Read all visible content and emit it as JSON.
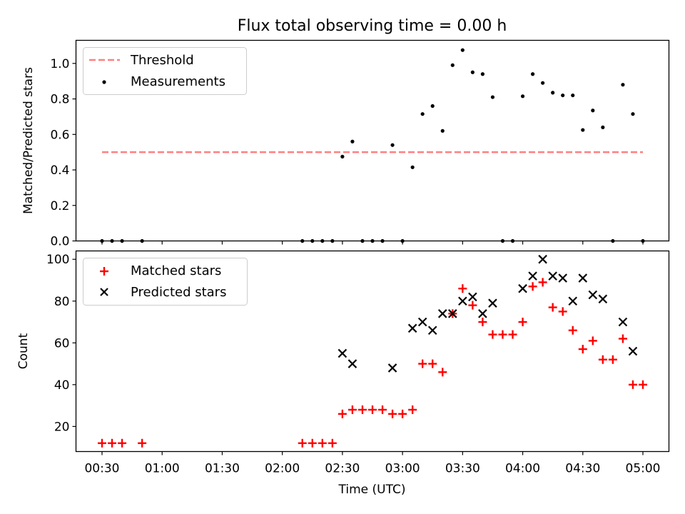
{
  "chart_data": [
    {
      "type": "scatter",
      "title": "Flux total observing time = 0.00 h",
      "ylabel": "Matched/Predicted stars",
      "xlabel": "",
      "ylim": [
        0,
        1.13
      ],
      "xlim": [
        "00:17",
        "05:13"
      ],
      "yticks": [
        0.0,
        0.2,
        0.4,
        0.6,
        0.8,
        1.0
      ],
      "ytick_labels": [
        "0.0",
        "0.2",
        "0.4",
        "0.6",
        "0.8",
        "1.0"
      ],
      "legend_position": "top-left",
      "series": [
        {
          "name": "Threshold",
          "kind": "dashed-line",
          "color": "#ff7f7f",
          "x": [
            "00:30",
            "05:00"
          ],
          "y": [
            0.5,
            0.5
          ]
        },
        {
          "name": "Measurements",
          "kind": "dot",
          "color": "#000000",
          "points": [
            [
              "00:30",
              0.0
            ],
            [
              "00:35",
              0.0
            ],
            [
              "00:40",
              0.0
            ],
            [
              "00:50",
              0.0
            ],
            [
              "02:10",
              0.0
            ],
            [
              "02:15",
              0.0
            ],
            [
              "02:20",
              0.0
            ],
            [
              "02:25",
              0.0
            ],
            [
              "02:30",
              0.475
            ],
            [
              "02:35",
              0.56
            ],
            [
              "02:40",
              0.0
            ],
            [
              "02:45",
              0.0
            ],
            [
              "02:50",
              0.0
            ],
            [
              "02:55",
              0.54
            ],
            [
              "03:00",
              0.0
            ],
            [
              "03:05",
              0.415
            ],
            [
              "03:10",
              0.715
            ],
            [
              "03:15",
              0.76
            ],
            [
              "03:20",
              0.62
            ],
            [
              "03:25",
              0.99
            ],
            [
              "03:30",
              1.075
            ],
            [
              "03:35",
              0.95
            ],
            [
              "03:40",
              0.94
            ],
            [
              "03:45",
              0.81
            ],
            [
              "03:50",
              0.0
            ],
            [
              "03:55",
              0.0
            ],
            [
              "04:00",
              0.815
            ],
            [
              "04:05",
              0.94
            ],
            [
              "04:10",
              0.89
            ],
            [
              "04:15",
              0.835
            ],
            [
              "04:20",
              0.82
            ],
            [
              "04:25",
              0.82
            ],
            [
              "04:30",
              0.625
            ],
            [
              "04:35",
              0.735
            ],
            [
              "04:40",
              0.64
            ],
            [
              "04:45",
              0.0
            ],
            [
              "04:50",
              0.88
            ],
            [
              "04:55",
              0.715
            ],
            [
              "05:00",
              0.0
            ]
          ]
        }
      ]
    },
    {
      "type": "scatter",
      "title": "",
      "ylabel": "Count",
      "xlabel": "Time (UTC)",
      "ylim": [
        8,
        104
      ],
      "xlim": [
        "00:17",
        "05:13"
      ],
      "yticks": [
        20,
        40,
        60,
        80,
        100
      ],
      "ytick_labels": [
        "20",
        "40",
        "60",
        "80",
        "100"
      ],
      "xticks": [
        "00:30",
        "01:00",
        "01:30",
        "02:00",
        "02:30",
        "03:00",
        "03:30",
        "04:00",
        "04:30",
        "05:00"
      ],
      "xtick_labels": [
        "00:30",
        "01:00",
        "01:30",
        "02:00",
        "02:30",
        "03:00",
        "03:30",
        "04:00",
        "04:30",
        "05:00"
      ],
      "legend_position": "top-left",
      "series": [
        {
          "name": "Matched stars",
          "kind": "plus",
          "color": "#ff0000",
          "points": [
            [
              "00:30",
              12
            ],
            [
              "00:35",
              12
            ],
            [
              "00:40",
              12
            ],
            [
              "00:50",
              12
            ],
            [
              "02:10",
              12
            ],
            [
              "02:15",
              12
            ],
            [
              "02:20",
              12
            ],
            [
              "02:25",
              12
            ],
            [
              "02:30",
              26
            ],
            [
              "02:35",
              28
            ],
            [
              "02:40",
              28
            ],
            [
              "02:45",
              28
            ],
            [
              "02:50",
              28
            ],
            [
              "02:55",
              26
            ],
            [
              "03:00",
              26
            ],
            [
              "03:05",
              28
            ],
            [
              "03:10",
              50
            ],
            [
              "03:15",
              50
            ],
            [
              "03:20",
              46
            ],
            [
              "03:25",
              74
            ],
            [
              "03:30",
              86
            ],
            [
              "03:35",
              78
            ],
            [
              "03:40",
              70
            ],
            [
              "03:45",
              64
            ],
            [
              "03:50",
              64
            ],
            [
              "03:55",
              64
            ],
            [
              "04:00",
              70
            ],
            [
              "04:05",
              87
            ],
            [
              "04:10",
              89
            ],
            [
              "04:15",
              77
            ],
            [
              "04:20",
              75
            ],
            [
              "04:25",
              66
            ],
            [
              "04:30",
              57
            ],
            [
              "04:35",
              61
            ],
            [
              "04:40",
              52
            ],
            [
              "04:45",
              52
            ],
            [
              "04:50",
              62
            ],
            [
              "04:55",
              40
            ],
            [
              "05:00",
              40
            ]
          ]
        },
        {
          "name": "Predicted stars",
          "kind": "cross",
          "color": "#000000",
          "points": [
            [
              "02:30",
              55
            ],
            [
              "02:35",
              50
            ],
            [
              "02:55",
              48
            ],
            [
              "03:05",
              67
            ],
            [
              "03:10",
              70
            ],
            [
              "03:15",
              66
            ],
            [
              "03:20",
              74
            ],
            [
              "03:25",
              74
            ],
            [
              "03:30",
              80
            ],
            [
              "03:35",
              82
            ],
            [
              "03:40",
              74
            ],
            [
              "03:45",
              79
            ],
            [
              "04:00",
              86
            ],
            [
              "04:05",
              92
            ],
            [
              "04:10",
              100
            ],
            [
              "04:15",
              92
            ],
            [
              "04:20",
              91
            ],
            [
              "04:25",
              80
            ],
            [
              "04:30",
              91
            ],
            [
              "04:35",
              83
            ],
            [
              "04:40",
              81
            ],
            [
              "04:50",
              70
            ],
            [
              "04:55",
              56
            ]
          ]
        }
      ]
    }
  ]
}
